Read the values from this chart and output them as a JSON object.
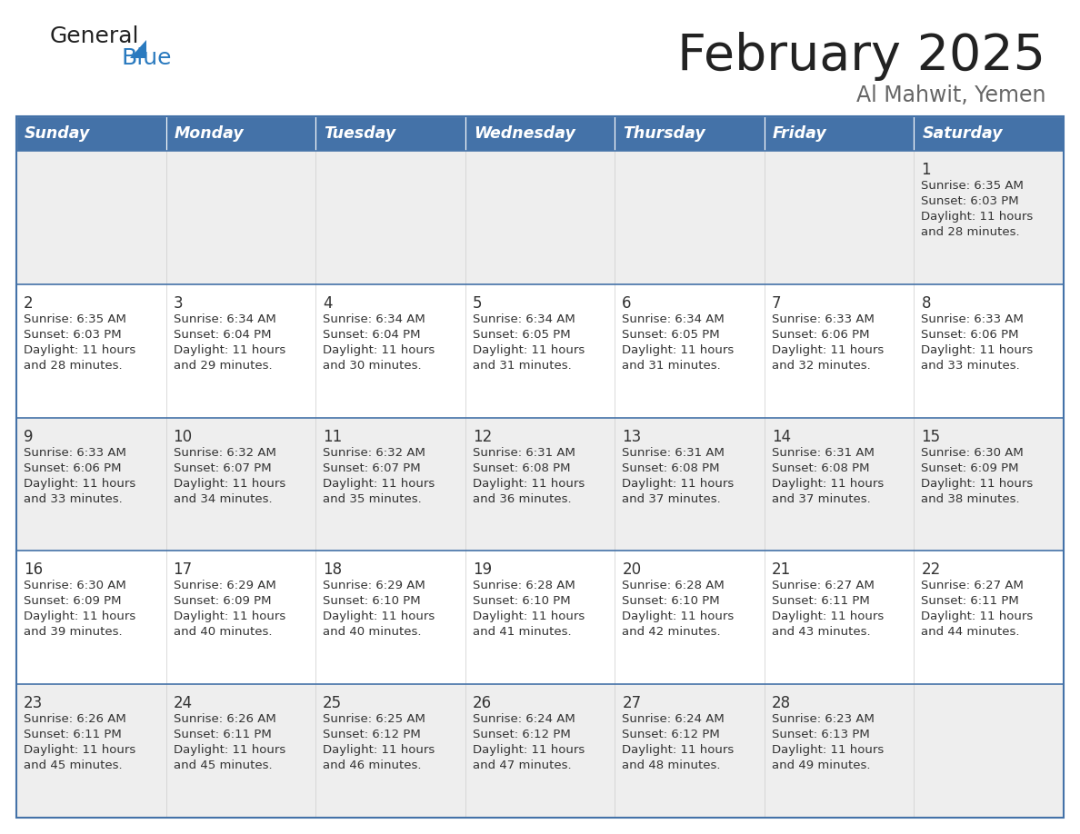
{
  "title": "February 2025",
  "subtitle": "Al Mahwit, Yemen",
  "header_bg": "#4472a8",
  "header_text": "#ffffff",
  "cell_bg_light": "#eeeeee",
  "cell_bg_white": "#ffffff",
  "border_color": "#4472a8",
  "day_headers": [
    "Sunday",
    "Monday",
    "Tuesday",
    "Wednesday",
    "Thursday",
    "Friday",
    "Saturday"
  ],
  "title_color": "#222222",
  "subtitle_color": "#666666",
  "day_number_color": "#333333",
  "info_color": "#333333",
  "logo_general_color": "#222222",
  "logo_blue_color": "#2a7abf",
  "calendar_data": [
    [
      null,
      null,
      null,
      null,
      null,
      null,
      {
        "day": 1,
        "sunrise": "6:35 AM",
        "sunset": "6:03 PM",
        "daylight": "11 hours and 28 minutes."
      }
    ],
    [
      {
        "day": 2,
        "sunrise": "6:35 AM",
        "sunset": "6:03 PM",
        "daylight": "11 hours and 28 minutes."
      },
      {
        "day": 3,
        "sunrise": "6:34 AM",
        "sunset": "6:04 PM",
        "daylight": "11 hours and 29 minutes."
      },
      {
        "day": 4,
        "sunrise": "6:34 AM",
        "sunset": "6:04 PM",
        "daylight": "11 hours and 30 minutes."
      },
      {
        "day": 5,
        "sunrise": "6:34 AM",
        "sunset": "6:05 PM",
        "daylight": "11 hours and 31 minutes."
      },
      {
        "day": 6,
        "sunrise": "6:34 AM",
        "sunset": "6:05 PM",
        "daylight": "11 hours and 31 minutes."
      },
      {
        "day": 7,
        "sunrise": "6:33 AM",
        "sunset": "6:06 PM",
        "daylight": "11 hours and 32 minutes."
      },
      {
        "day": 8,
        "sunrise": "6:33 AM",
        "sunset": "6:06 PM",
        "daylight": "11 hours and 33 minutes."
      }
    ],
    [
      {
        "day": 9,
        "sunrise": "6:33 AM",
        "sunset": "6:06 PM",
        "daylight": "11 hours and 33 minutes."
      },
      {
        "day": 10,
        "sunrise": "6:32 AM",
        "sunset": "6:07 PM",
        "daylight": "11 hours and 34 minutes."
      },
      {
        "day": 11,
        "sunrise": "6:32 AM",
        "sunset": "6:07 PM",
        "daylight": "11 hours and 35 minutes."
      },
      {
        "day": 12,
        "sunrise": "6:31 AM",
        "sunset": "6:08 PM",
        "daylight": "11 hours and 36 minutes."
      },
      {
        "day": 13,
        "sunrise": "6:31 AM",
        "sunset": "6:08 PM",
        "daylight": "11 hours and 37 minutes."
      },
      {
        "day": 14,
        "sunrise": "6:31 AM",
        "sunset": "6:08 PM",
        "daylight": "11 hours and 37 minutes."
      },
      {
        "day": 15,
        "sunrise": "6:30 AM",
        "sunset": "6:09 PM",
        "daylight": "11 hours and 38 minutes."
      }
    ],
    [
      {
        "day": 16,
        "sunrise": "6:30 AM",
        "sunset": "6:09 PM",
        "daylight": "11 hours and 39 minutes."
      },
      {
        "day": 17,
        "sunrise": "6:29 AM",
        "sunset": "6:09 PM",
        "daylight": "11 hours and 40 minutes."
      },
      {
        "day": 18,
        "sunrise": "6:29 AM",
        "sunset": "6:10 PM",
        "daylight": "11 hours and 40 minutes."
      },
      {
        "day": 19,
        "sunrise": "6:28 AM",
        "sunset": "6:10 PM",
        "daylight": "11 hours and 41 minutes."
      },
      {
        "day": 20,
        "sunrise": "6:28 AM",
        "sunset": "6:10 PM",
        "daylight": "11 hours and 42 minutes."
      },
      {
        "day": 21,
        "sunrise": "6:27 AM",
        "sunset": "6:11 PM",
        "daylight": "11 hours and 43 minutes."
      },
      {
        "day": 22,
        "sunrise": "6:27 AM",
        "sunset": "6:11 PM",
        "daylight": "11 hours and 44 minutes."
      }
    ],
    [
      {
        "day": 23,
        "sunrise": "6:26 AM",
        "sunset": "6:11 PM",
        "daylight": "11 hours and 45 minutes."
      },
      {
        "day": 24,
        "sunrise": "6:26 AM",
        "sunset": "6:11 PM",
        "daylight": "11 hours and 45 minutes."
      },
      {
        "day": 25,
        "sunrise": "6:25 AM",
        "sunset": "6:12 PM",
        "daylight": "11 hours and 46 minutes."
      },
      {
        "day": 26,
        "sunrise": "6:24 AM",
        "sunset": "6:12 PM",
        "daylight": "11 hours and 47 minutes."
      },
      {
        "day": 27,
        "sunrise": "6:24 AM",
        "sunset": "6:12 PM",
        "daylight": "11 hours and 48 minutes."
      },
      {
        "day": 28,
        "sunrise": "6:23 AM",
        "sunset": "6:13 PM",
        "daylight": "11 hours and 49 minutes."
      },
      null
    ]
  ],
  "row_backgrounds": [
    "light",
    "white",
    "light",
    "white",
    "light"
  ]
}
